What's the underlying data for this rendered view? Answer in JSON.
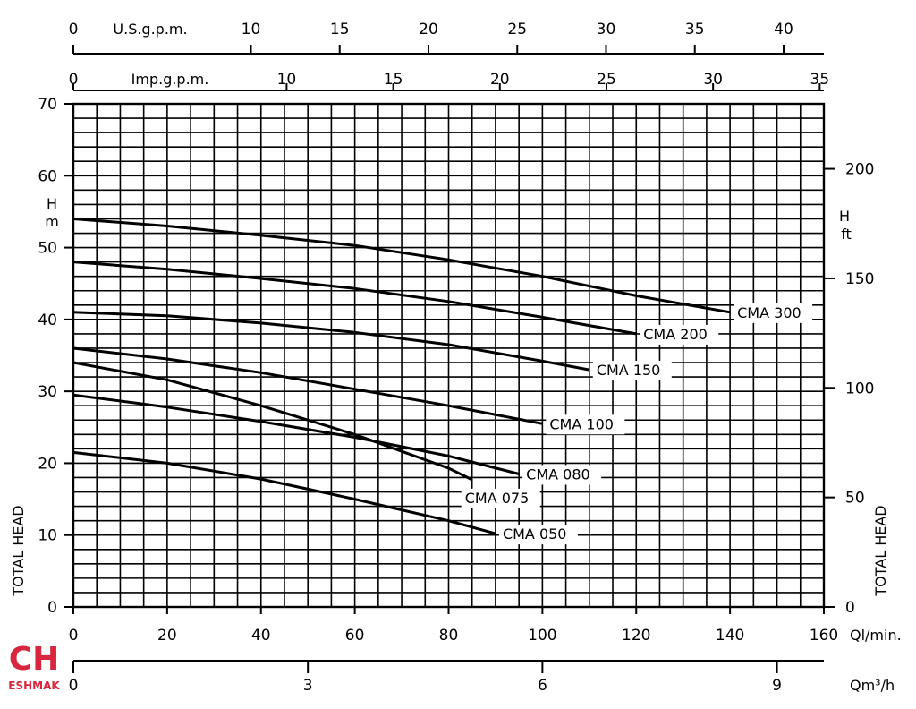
{
  "chart_data": {
    "type": "line",
    "title": "",
    "xlabel": "Ql/min.",
    "ylabel": "TOTAL HEAD",
    "y_unit_left": "H\nm",
    "y_unit_right": "H\nft",
    "ylabel_right": "TOTAL HEAD",
    "xlim": [
      0,
      160
    ],
    "ylim": [
      0,
      70
    ],
    "x_ticks": [
      0,
      20,
      40,
      60,
      80,
      100,
      120,
      140,
      160
    ],
    "y_ticks": [
      0,
      10,
      20,
      30,
      40,
      50,
      60,
      70
    ],
    "grid": true,
    "secondary_axes": {
      "usgpm": {
        "label": "U.S.g.p.m.",
        "ticks": [
          "0",
          "10",
          "15",
          "20",
          "25",
          "30",
          "35",
          "40"
        ],
        "values": [
          0,
          10,
          15,
          20,
          25,
          30,
          35,
          40
        ]
      },
      "impgpm": {
        "label": "Imp.g.p.m.",
        "ticks": [
          "0",
          "10",
          "15",
          "20",
          "25",
          "30",
          "35"
        ],
        "values": [
          0,
          10,
          15,
          20,
          25,
          30,
          35
        ]
      },
      "ft": {
        "ticks": [
          "0",
          "50",
          "100",
          "150",
          "200"
        ],
        "values": [
          0,
          50,
          100,
          150,
          200
        ]
      },
      "m3h": {
        "label": "Qm³/h",
        "ticks": [
          "0",
          "3",
          "6",
          "9"
        ],
        "values": [
          0,
          3,
          6,
          9
        ]
      }
    },
    "series": [
      {
        "name": "CMA 300",
        "x": [
          0,
          20,
          40,
          60,
          80,
          100,
          120,
          140
        ],
        "y": [
          54,
          53,
          51.7,
          50.3,
          48.3,
          46,
          43.3,
          41
        ]
      },
      {
        "name": "CMA 200",
        "x": [
          0,
          20,
          40,
          60,
          80,
          100,
          120
        ],
        "y": [
          48,
          47,
          45.7,
          44.3,
          42.5,
          40.3,
          38
        ]
      },
      {
        "name": "CMA 150",
        "x": [
          0,
          20,
          40,
          60,
          80,
          100,
          110
        ],
        "y": [
          41,
          40.5,
          39.5,
          38.2,
          36.5,
          34.2,
          33
        ]
      },
      {
        "name": "CMA 100",
        "x": [
          0,
          20,
          40,
          60,
          80,
          100
        ],
        "y": [
          36,
          34.5,
          32.6,
          30.3,
          28,
          25.5
        ]
      },
      {
        "name": "CMA 080",
        "x": [
          0,
          20,
          40,
          60,
          80,
          95
        ],
        "y": [
          29.5,
          27.8,
          25.8,
          23.6,
          21,
          18.5
        ]
      },
      {
        "name": "CMA 075",
        "x": [
          0,
          20,
          40,
          60,
          80,
          85
        ],
        "y": [
          34,
          31.6,
          28,
          24,
          19.3,
          17.7
        ]
      },
      {
        "name": "CMA 050",
        "x": [
          0,
          20,
          40,
          60,
          80,
          90
        ],
        "y": [
          21.5,
          20,
          17.8,
          15,
          12,
          10.2
        ]
      }
    ],
    "curve_labels": [
      "CMA 300",
      "CMA 200",
      "CMA 150",
      "CMA 100",
      "CMA 080",
      "CMA 075",
      "CMA 050"
    ]
  },
  "logo": {
    "text": "CH",
    "subtitle": "ESHMAK",
    "color": "#d7263d"
  }
}
